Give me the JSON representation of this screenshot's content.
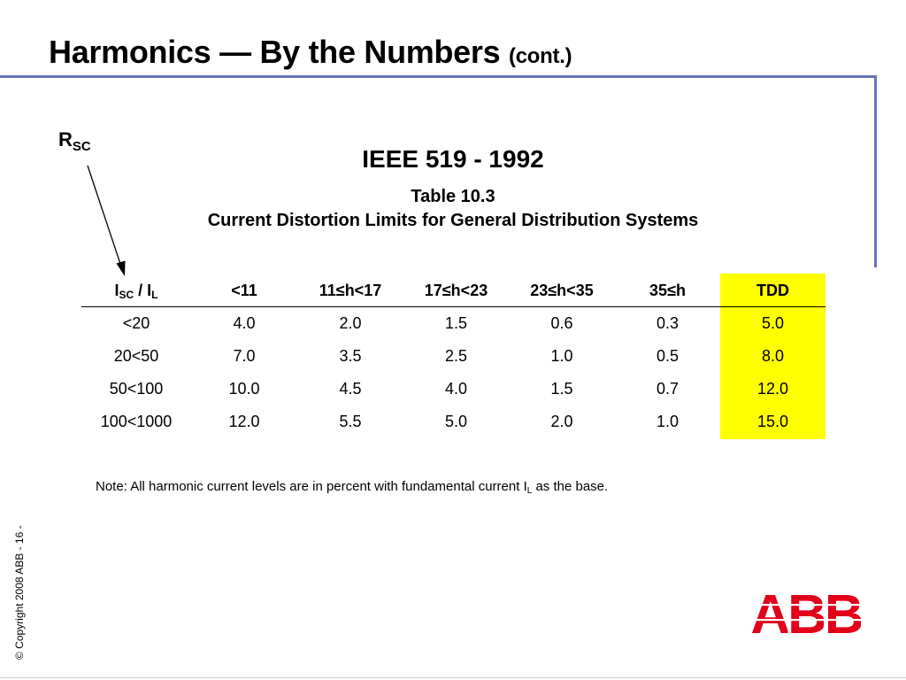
{
  "slide": {
    "title": "Harmonics — By the Numbers",
    "title_suffix": "(cont.)",
    "rsc_main": "R",
    "rsc_sub": "SC",
    "standard": "IEEE 519 - 1992",
    "table_caption_line1": "Table 10.3",
    "table_caption_line2": "Current Distortion Limits for General Distribution Systems"
  },
  "table": {
    "header_ratio_I": "I",
    "header_ratio_sc": "SC",
    "header_ratio_sep": " / I",
    "header_ratio_l": "L",
    "headers": [
      "<11",
      "11≤h<17",
      "17≤h<23",
      "23≤h<35",
      "35≤h",
      "TDD"
    ],
    "rows": [
      [
        "<20",
        "4.0",
        "2.0",
        "1.5",
        "0.6",
        "0.3",
        "5.0"
      ],
      [
        "20<50",
        "7.0",
        "3.5",
        "2.5",
        "1.0",
        "0.5",
        "8.0"
      ],
      [
        "50<100",
        "10.0",
        "4.5",
        "4.0",
        "1.5",
        "0.7",
        "12.0"
      ],
      [
        "100<1000",
        "12.0",
        "5.5",
        "5.0",
        "2.0",
        "1.0",
        "15.0"
      ]
    ],
    "highlight_color": "#ffff00"
  },
  "note": {
    "text_before": "Note: All harmonic current levels are in percent with fundamental current I",
    "subscript": "L",
    "text_after": " as the base."
  },
  "footer": {
    "copyright": "© Copyright 2008 ABB - 16 -",
    "logo_text": "ABB"
  },
  "colors": {
    "accent_rule": "#6673b8",
    "logo_red": "#e2001a"
  }
}
